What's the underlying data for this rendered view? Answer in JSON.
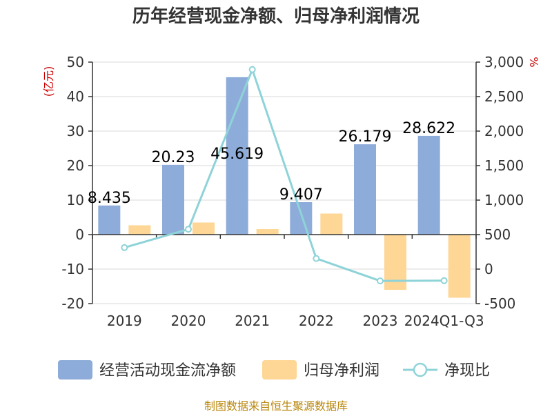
{
  "title": "历年经营现金净额、归母净利润情况",
  "source": "制图数据来自恒生聚源数据库",
  "chart_data": {
    "type": "bar",
    "categories": [
      "2019",
      "2020",
      "2021",
      "2022",
      "2023",
      "2024Q1-Q3"
    ],
    "series": [
      {
        "name": "经营活动现金流净额",
        "type": "bar",
        "axis": "left",
        "color": "#8eacd9",
        "values": [
          8.435,
          20.23,
          45.619,
          9.407,
          26.179,
          28.622
        ]
      },
      {
        "name": "归母净利润",
        "type": "bar",
        "axis": "left",
        "color": "#fed695",
        "values": [
          2.7,
          3.5,
          1.6,
          6.1,
          -16.0,
          -18.3
        ]
      },
      {
        "name": "净现比",
        "type": "line",
        "axis": "right",
        "color": "#8ed3d8",
        "values": [
          312,
          578,
          2892,
          154,
          -171,
          -167
        ]
      }
    ],
    "data_labels": [
      "8.435",
      "20.23",
      "45.619",
      "9.407",
      "26.179",
      "28.622"
    ],
    "y_left": {
      "label": "(亿元)",
      "min": -20,
      "max": 50,
      "ticks": [
        "-20",
        "-10",
        "0",
        "10",
        "20",
        "30",
        "40",
        "50"
      ]
    },
    "y_right": {
      "label": "%",
      "min": -500,
      "max": 3000,
      "ticks": [
        "-500",
        "0",
        "500",
        "1,000",
        "1,500",
        "2,000",
        "2,500",
        "3,000"
      ]
    },
    "grid": true,
    "legend_position": "bottom"
  }
}
